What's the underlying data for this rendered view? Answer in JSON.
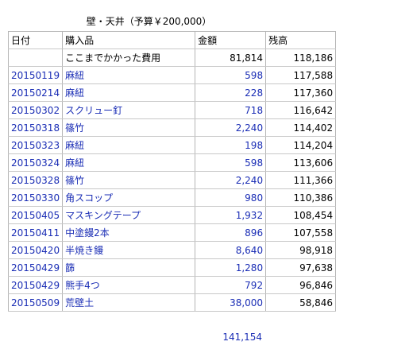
{
  "title": "壁・天井（予算￥200,000）",
  "headers": {
    "date": "日付",
    "item": "購入品",
    "amount": "金額",
    "balance": "残高"
  },
  "prior": {
    "item": "ここまでかかった費用",
    "amount": "81,814",
    "balance": "118,186"
  },
  "rows": [
    {
      "date": "20150119",
      "item": "麻紐",
      "amount": "598",
      "balance": "117,588"
    },
    {
      "date": "20150214",
      "item": "麻紐",
      "amount": "228",
      "balance": "117,360"
    },
    {
      "date": "20150302",
      "item": "スクリュー釘",
      "amount": "718",
      "balance": "116,642"
    },
    {
      "date": "20150318",
      "item": "篠竹",
      "amount": "2,240",
      "balance": "114,402"
    },
    {
      "date": "20150323",
      "item": "麻紐",
      "amount": "198",
      "balance": "114,204"
    },
    {
      "date": "20150324",
      "item": "麻紐",
      "amount": "598",
      "balance": "113,606"
    },
    {
      "date": "20150328",
      "item": "篠竹",
      "amount": "2,240",
      "balance": "111,366"
    },
    {
      "date": "20150330",
      "item": "角スコップ",
      "amount": "980",
      "balance": "110,386"
    },
    {
      "date": "20150405",
      "item": "マスキングテープ",
      "amount": "1,932",
      "balance": "108,454"
    },
    {
      "date": "20150411",
      "item": "中塗鏝2本",
      "amount": "896",
      "balance": "107,558"
    },
    {
      "date": "20150420",
      "item": "半焼き鏝",
      "amount": "8,640",
      "balance": "98,918"
    },
    {
      "date": "20150429",
      "item": "篩",
      "amount": "1,280",
      "balance": "97,638"
    },
    {
      "date": "20150429",
      "item": "熊手4つ",
      "amount": "792",
      "balance": "96,846"
    },
    {
      "date": "20150509",
      "item": "荒壁土",
      "amount": "38,000",
      "balance": "58,846"
    }
  ],
  "total": "141,154",
  "colors": {
    "text": "#000000",
    "link_blue": "#1a2db5",
    "grid": "#b5b5b5"
  }
}
